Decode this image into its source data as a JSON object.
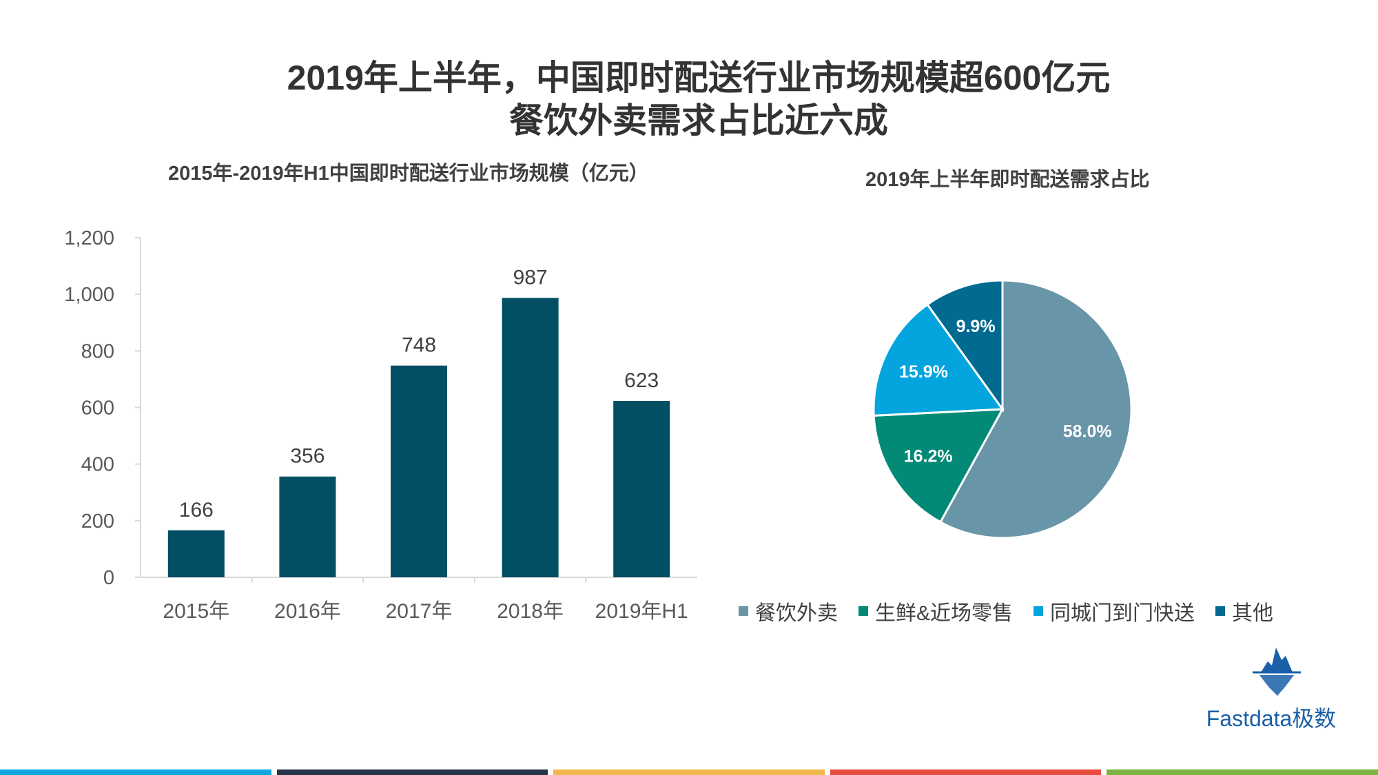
{
  "title": {
    "line1": "2019年上半年，中国即时配送行业市场规模超600亿元",
    "line2": "餐饮外卖需求占比近六成"
  },
  "chart_data": [
    {
      "type": "bar",
      "title": "2015年-2019年H1中国即时配送行业市场规模（亿元）",
      "categories": [
        "2015年",
        "2016年",
        "2017年",
        "2018年",
        "2019年H1"
      ],
      "values": [
        166,
        356,
        748,
        987,
        623
      ],
      "value_labels": [
        "166",
        "356",
        "748",
        "987",
        "623"
      ],
      "ylim": [
        0,
        1200
      ],
      "yticks": [
        0,
        200,
        400,
        600,
        800,
        1000,
        1200
      ],
      "ytick_labels": [
        "0",
        "200",
        "400",
        "600",
        "800",
        "1,000",
        "1,200"
      ],
      "color": "#024e63",
      "grid": false
    },
    {
      "type": "pie",
      "title": "2019年上半年即时配送需求占比",
      "categories": [
        "餐饮外卖",
        "生鲜&近场零售",
        "同城门到门快送",
        "其他"
      ],
      "values": [
        58.0,
        16.2,
        15.9,
        9.9
      ],
      "value_labels": [
        "58.0%",
        "16.2%",
        "15.9%",
        "9.9%"
      ],
      "colors": [
        "#6895a8",
        "#028a77",
        "#04a5de",
        "#016a91"
      ],
      "legend_position": "bottom"
    }
  ],
  "logo": {
    "text": "Fastdata极数",
    "icon": "iceberg-logo-icon",
    "color": "#1a5fa8"
  },
  "bottom_bar_colors": [
    "#10a7e0",
    "#253547",
    "#f2b84b",
    "#e84c3d",
    "#7cb342"
  ]
}
